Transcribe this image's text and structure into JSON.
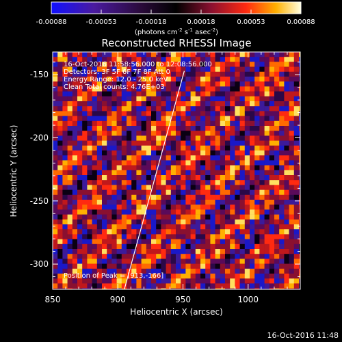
{
  "chart_data": {
    "type": "heatmap",
    "title": "Reconstructed RHESSI Image",
    "xlabel": "Heliocentric X (arcsec)",
    "ylabel": "Heliocentric Y (arcsec)",
    "xlim": [
      850,
      1040
    ],
    "ylim": [
      -320,
      -132
    ],
    "x_ticks": [
      850,
      900,
      950,
      1000
    ],
    "y_ticks": [
      -150,
      -200,
      -250,
      -300
    ],
    "colorbar": {
      "min": -0.00088,
      "max": 0.00088,
      "ticks": [
        "-0.00088",
        "-0.00053",
        "-0.00018",
        "0.00018",
        "0.00053",
        "0.00088"
      ],
      "unit_prefix": "(photons cm",
      "unit_exp1": "-2",
      "unit_mid": " s",
      "unit_exp2": "-1",
      "unit_mid2": " asec",
      "unit_exp3": "-2",
      "unit_suffix": ")"
    },
    "annotations": [
      "16-Oct-2016 11:58:56.000 to 12:08:56.000",
      "Detectors: 3F 5F 6F 7F 8F  Att 0",
      "Energy Range: 12.0 - 25.0 keV",
      "Clean     Total counts: 4.76E+03"
    ],
    "peak_label": "Position of Peak = [913,-166]",
    "limb_line": [
      [
        905,
        -320
      ],
      [
        951,
        -147
      ]
    ],
    "colors": {
      "background": "#000000",
      "text": "#ffffff",
      "limb": "#ffffff"
    }
  },
  "footer": {
    "timestamp": "16-Oct-2016 11:48"
  }
}
